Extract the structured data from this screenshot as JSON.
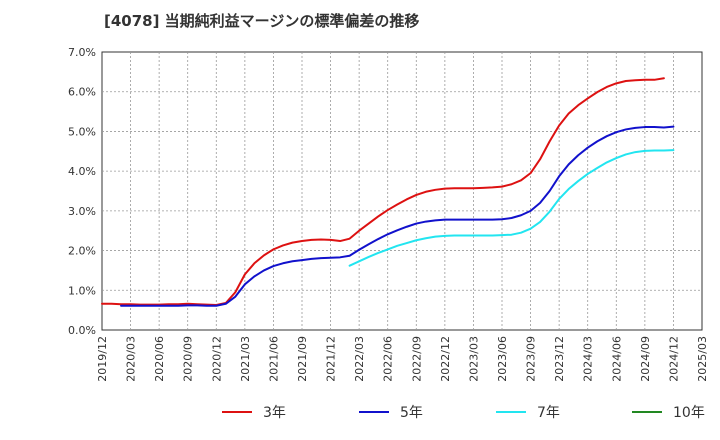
{
  "chart_data": {
    "type": "line",
    "title": "[4078]  当期純利益マージンの標準偏差の推移",
    "xlabel": "",
    "ylabel": "",
    "ylim": [
      0,
      7
    ],
    "y_ticks": [
      0,
      1,
      2,
      3,
      4,
      5,
      6,
      7
    ],
    "y_tick_labels": [
      "0.0%",
      "1.0%",
      "2.0%",
      "3.0%",
      "4.0%",
      "5.0%",
      "6.0%",
      "7.0%"
    ],
    "x_ticks": [
      "2019/12",
      "2020/03",
      "2020/06",
      "2020/09",
      "2020/12",
      "2021/03",
      "2021/06",
      "2021/09",
      "2021/12",
      "2022/03",
      "2022/06",
      "2022/09",
      "2022/12",
      "2023/03",
      "2023/06",
      "2023/09",
      "2023/12",
      "2024/03",
      "2024/06",
      "2024/09",
      "2024/12",
      "2025/03"
    ],
    "grid": true,
    "legend_position": "bottom",
    "series": [
      {
        "name": "3年",
        "color": "#dd1111",
        "points": [
          [
            "2019/12",
            0.66
          ],
          [
            "2020/01",
            0.66
          ],
          [
            "2020/02",
            0.65
          ],
          [
            "2020/03",
            0.65
          ],
          [
            "2020/04",
            0.64
          ],
          [
            "2020/05",
            0.64
          ],
          [
            "2020/06",
            0.64
          ],
          [
            "2020/07",
            0.65
          ],
          [
            "2020/08",
            0.65
          ],
          [
            "2020/09",
            0.66
          ],
          [
            "2020/10",
            0.65
          ],
          [
            "2020/11",
            0.64
          ],
          [
            "2020/12",
            0.63
          ],
          [
            "2021/01",
            0.68
          ],
          [
            "2021/02",
            0.95
          ],
          [
            "2021/03",
            1.4
          ],
          [
            "2021/04",
            1.68
          ],
          [
            "2021/05",
            1.88
          ],
          [
            "2021/06",
            2.03
          ],
          [
            "2021/07",
            2.13
          ],
          [
            "2021/08",
            2.2
          ],
          [
            "2021/09",
            2.24
          ],
          [
            "2021/10",
            2.27
          ],
          [
            "2021/11",
            2.28
          ],
          [
            "2021/12",
            2.27
          ],
          [
            "2022/01",
            2.24
          ],
          [
            "2022/02",
            2.3
          ],
          [
            "2022/03",
            2.5
          ],
          [
            "2022/04",
            2.68
          ],
          [
            "2022/05",
            2.86
          ],
          [
            "2022/06",
            3.02
          ],
          [
            "2022/07",
            3.16
          ],
          [
            "2022/08",
            3.29
          ],
          [
            "2022/09",
            3.4
          ],
          [
            "2022/10",
            3.48
          ],
          [
            "2022/11",
            3.53
          ],
          [
            "2022/12",
            3.56
          ],
          [
            "2023/01",
            3.57
          ],
          [
            "2023/02",
            3.57
          ],
          [
            "2023/03",
            3.57
          ],
          [
            "2023/04",
            3.58
          ],
          [
            "2023/05",
            3.59
          ],
          [
            "2023/06",
            3.61
          ],
          [
            "2023/07",
            3.67
          ],
          [
            "2023/08",
            3.77
          ],
          [
            "2023/09",
            3.95
          ],
          [
            "2023/10",
            4.3
          ],
          [
            "2023/11",
            4.75
          ],
          [
            "2023/12",
            5.15
          ],
          [
            "2024/01",
            5.45
          ],
          [
            "2024/02",
            5.66
          ],
          [
            "2024/03",
            5.83
          ],
          [
            "2024/04",
            5.99
          ],
          [
            "2024/05",
            6.12
          ],
          [
            "2024/06",
            6.21
          ],
          [
            "2024/07",
            6.27
          ],
          [
            "2024/08",
            6.29
          ],
          [
            "2024/09",
            6.3
          ],
          [
            "2024/10",
            6.3
          ],
          [
            "2024/11",
            6.34
          ]
        ]
      },
      {
        "name": "5年",
        "color": "#1111cc",
        "points": [
          [
            "2020/02",
            0.61
          ],
          [
            "2020/03",
            0.61
          ],
          [
            "2020/04",
            0.61
          ],
          [
            "2020/05",
            0.61
          ],
          [
            "2020/06",
            0.61
          ],
          [
            "2020/07",
            0.61
          ],
          [
            "2020/08",
            0.61
          ],
          [
            "2020/09",
            0.62
          ],
          [
            "2020/10",
            0.62
          ],
          [
            "2020/11",
            0.61
          ],
          [
            "2020/12",
            0.61
          ],
          [
            "2021/01",
            0.66
          ],
          [
            "2021/02",
            0.84
          ],
          [
            "2021/03",
            1.15
          ],
          [
            "2021/04",
            1.35
          ],
          [
            "2021/05",
            1.5
          ],
          [
            "2021/06",
            1.61
          ],
          [
            "2021/07",
            1.68
          ],
          [
            "2021/08",
            1.73
          ],
          [
            "2021/09",
            1.76
          ],
          [
            "2021/10",
            1.79
          ],
          [
            "2021/11",
            1.81
          ],
          [
            "2021/12",
            1.82
          ],
          [
            "2022/01",
            1.83
          ],
          [
            "2022/02",
            1.87
          ],
          [
            "2022/03",
            2.02
          ],
          [
            "2022/04",
            2.16
          ],
          [
            "2022/05",
            2.29
          ],
          [
            "2022/06",
            2.41
          ],
          [
            "2022/07",
            2.51
          ],
          [
            "2022/08",
            2.6
          ],
          [
            "2022/09",
            2.68
          ],
          [
            "2022/10",
            2.73
          ],
          [
            "2022/11",
            2.76
          ],
          [
            "2022/12",
            2.78
          ],
          [
            "2023/01",
            2.78
          ],
          [
            "2023/02",
            2.78
          ],
          [
            "2023/03",
            2.78
          ],
          [
            "2023/04",
            2.78
          ],
          [
            "2023/05",
            2.78
          ],
          [
            "2023/06",
            2.79
          ],
          [
            "2023/07",
            2.82
          ],
          [
            "2023/08",
            2.89
          ],
          [
            "2023/09",
            3.0
          ],
          [
            "2023/10",
            3.2
          ],
          [
            "2023/11",
            3.5
          ],
          [
            "2023/12",
            3.87
          ],
          [
            "2024/01",
            4.17
          ],
          [
            "2024/02",
            4.4
          ],
          [
            "2024/03",
            4.59
          ],
          [
            "2024/04",
            4.75
          ],
          [
            "2024/05",
            4.88
          ],
          [
            "2024/06",
            4.98
          ],
          [
            "2024/07",
            5.05
          ],
          [
            "2024/08",
            5.09
          ],
          [
            "2024/09",
            5.11
          ],
          [
            "2024/10",
            5.11
          ],
          [
            "2024/11",
            5.1
          ],
          [
            "2024/12",
            5.12
          ]
        ]
      },
      {
        "name": "7年",
        "color": "#22e5f0",
        "points": [
          [
            "2022/02",
            1.62
          ],
          [
            "2022/03",
            1.73
          ],
          [
            "2022/04",
            1.84
          ],
          [
            "2022/05",
            1.94
          ],
          [
            "2022/06",
            2.03
          ],
          [
            "2022/07",
            2.12
          ],
          [
            "2022/08",
            2.19
          ],
          [
            "2022/09",
            2.26
          ],
          [
            "2022/10",
            2.31
          ],
          [
            "2022/11",
            2.35
          ],
          [
            "2022/12",
            2.37
          ],
          [
            "2023/01",
            2.38
          ],
          [
            "2023/02",
            2.38
          ],
          [
            "2023/03",
            2.38
          ],
          [
            "2023/04",
            2.38
          ],
          [
            "2023/05",
            2.38
          ],
          [
            "2023/06",
            2.39
          ],
          [
            "2023/07",
            2.4
          ],
          [
            "2023/08",
            2.45
          ],
          [
            "2023/09",
            2.55
          ],
          [
            "2023/10",
            2.72
          ],
          [
            "2023/11",
            2.98
          ],
          [
            "2023/12",
            3.3
          ],
          [
            "2024/01",
            3.55
          ],
          [
            "2024/02",
            3.75
          ],
          [
            "2024/03",
            3.93
          ],
          [
            "2024/04",
            4.08
          ],
          [
            "2024/05",
            4.22
          ],
          [
            "2024/06",
            4.33
          ],
          [
            "2024/07",
            4.42
          ],
          [
            "2024/08",
            4.48
          ],
          [
            "2024/09",
            4.51
          ],
          [
            "2024/10",
            4.52
          ],
          [
            "2024/11",
            4.52
          ],
          [
            "2024/12",
            4.53
          ]
        ]
      },
      {
        "name": "10年",
        "color": "#228822",
        "points": []
      }
    ]
  }
}
